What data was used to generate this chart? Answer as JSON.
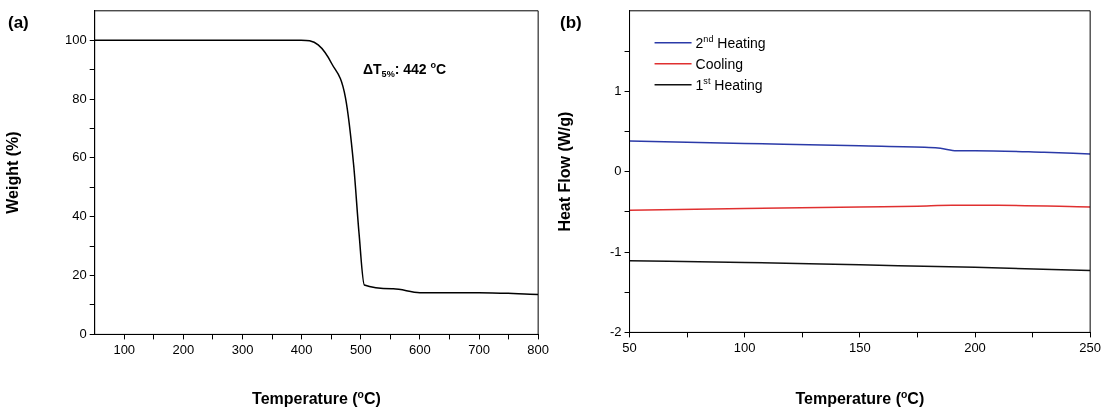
{
  "chart_data": [
    {
      "type": "line",
      "title": "(a)",
      "xlabel": "Temperature ($^{o}$C)",
      "ylabel": "Weight (%)",
      "annotations": [
        "ΔT$_{5%}$: 442 $^{o}$C"
      ],
      "x": [
        50,
        380,
        399,
        428,
        451,
        474,
        488,
        497,
        506,
        555,
        600,
        700,
        800
      ],
      "series": [
        {
          "color": "#000000",
          "values": [
            100,
            100,
            100,
            98.4,
            92,
            80.6,
            57.5,
            34.5,
            16.8,
            15.5,
            14.2,
            14.2,
            13.6
          ]
        }
      ],
      "xlim": [
        50,
        800
      ],
      "xticks": [
        100,
        {
          "value": 150,
          "label": null
        },
        200,
        {
          "value": 250,
          "label": null
        },
        300,
        {
          "value": 350,
          "label": null
        },
        400,
        {
          "value": 450,
          "label": null
        },
        500,
        {
          "value": 550,
          "label": null
        },
        600,
        {
          "value": 650,
          "label": null
        },
        700,
        {
          "value": 750,
          "label": null
        },
        800
      ],
      "ylim": [
        0,
        110
      ],
      "yticks": [
        0,
        {
          "value": 10,
          "label": null
        },
        20,
        {
          "value": 30,
          "label": null
        },
        40,
        {
          "value": 50,
          "label": null
        },
        60,
        {
          "value": 70,
          "label": null
        },
        80,
        {
          "value": 90,
          "label": null
        },
        100
      ],
      "grid": false,
      "legend": false
    },
    {
      "type": "line",
      "title": "(b)",
      "xlabel": "Temperature ($^{o}$C)",
      "ylabel": "Heat Flow (W/g)",
      "x": [
        50,
        100,
        150,
        180,
        185,
        192,
        200,
        230,
        250
      ],
      "series": [
        {
          "name": "2$^{nd}$ Heating",
          "color": "#2b3aa8",
          "values": [
            0.38,
            0.35,
            0.32,
            0.3,
            0.29,
            0.26,
            0.26,
            0.24,
            0.22
          ]
        },
        {
          "name": "Cooling",
          "color": "#e03030",
          "x": [
            50,
            100,
            150,
            175,
            190,
            210,
            250
          ],
          "values": [
            -0.48,
            -0.46,
            -0.44,
            -0.43,
            -0.42,
            -0.42,
            -0.44
          ]
        },
        {
          "name": "1$^{st}$ Heating",
          "color": "#111111",
          "x": [
            50,
            100,
            150,
            200,
            250
          ],
          "values": [
            -1.11,
            -1.13,
            -1.16,
            -1.19,
            -1.23
          ]
        }
      ],
      "xlim": [
        50,
        250
      ],
      "xticks": [
        50,
        {
          "value": 75,
          "label": null
        },
        100,
        {
          "value": 125,
          "label": null
        },
        150,
        {
          "value": 175,
          "label": null
        },
        200,
        {
          "value": 225,
          "label": null
        },
        250
      ],
      "ylim": [
        -2,
        2
      ],
      "yticks": [
        -2,
        {
          "value": -1.5,
          "label": null
        },
        -1,
        {
          "value": -0.5,
          "label": null
        },
        0,
        {
          "value": 0.5,
          "label": null
        },
        1,
        {
          "value": 1.5,
          "label": null
        }
      ],
      "grid": false,
      "legend": "top left"
    }
  ]
}
